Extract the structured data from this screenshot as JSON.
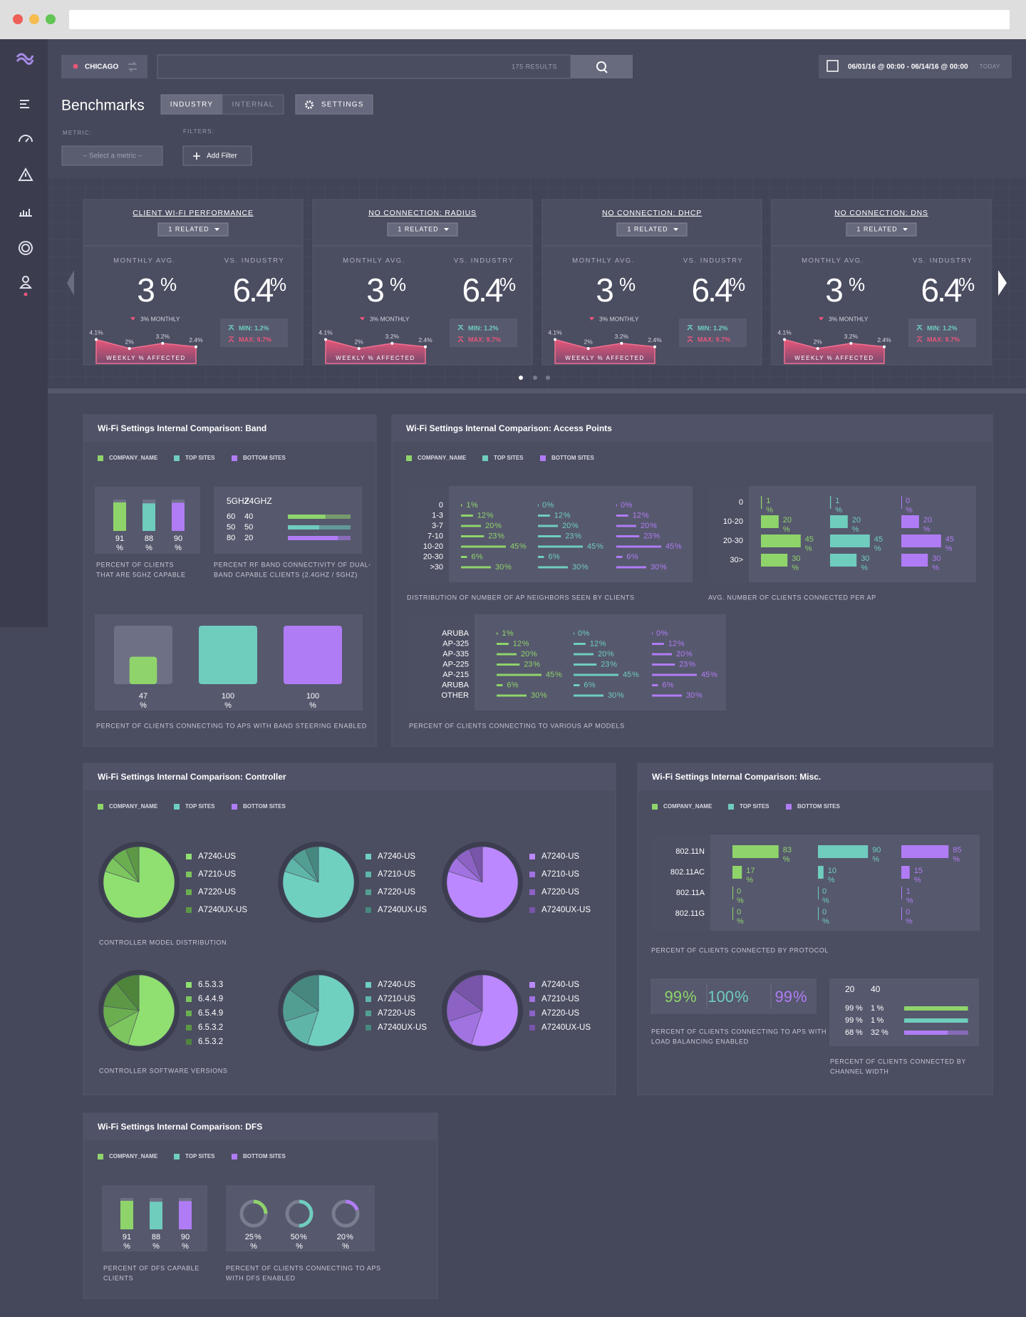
{
  "header": {
    "location": "CHICAGO",
    "results": "175 RESULTS",
    "date_range": "06/01/16 @ 00:00 - 06/14/16 @ 00:00",
    "today": "TODAY"
  },
  "page": {
    "title": "Benchmarks",
    "tabs": [
      "INDUSTRY",
      "INTERNAL"
    ],
    "settings": "SETTINGS",
    "metric_label": "METRIC:",
    "filters_label": "FILTERS:",
    "metric_placeholder": "– Select a metric –",
    "add_filter": "Add Filter"
  },
  "unit": "%",
  "cards": [
    {
      "title": "CLIENT WI-FI PERFORMANCE",
      "related": "1 RELATED",
      "monthly_label": "MONTHLY AVG.",
      "monthly_value": 3,
      "vs_label": "VS. INDUSTRY",
      "vs_value": 6.4,
      "change": "3% MONTHLY",
      "min": "MIN: 1.2%",
      "max": "MAX: 9.7%",
      "trend": {
        "type": "area",
        "values": [
          4.1,
          2,
          3.2,
          2.4
        ],
        "value_labels": [
          "4.1%",
          "2%",
          "3.2%",
          "2.4%"
        ],
        "label": "WEEKLY % AFFECTED"
      }
    },
    {
      "title": "NO CONNECTION: RADIUS",
      "related": "1 RELATED",
      "monthly_label": "MONTHLY AVG.",
      "monthly_value": 3,
      "vs_label": "VS. INDUSTRY",
      "vs_value": 6.4,
      "change": "3% MONTHLY",
      "min": "MIN: 1.2%",
      "max": "MAX: 9.7%",
      "trend": {
        "type": "area",
        "values": [
          4.1,
          2,
          3.2,
          2.4
        ],
        "value_labels": [
          "4.1%",
          "2%",
          "3.2%",
          "2.4%"
        ],
        "label": "WEEKLY % AFFECTED"
      }
    },
    {
      "title": "NO CONNECTION: DHCP",
      "related": "1 RELATED",
      "monthly_label": "MONTHLY AVG.",
      "monthly_value": 3,
      "vs_label": "VS. INDUSTRY",
      "vs_value": 6.4,
      "change": "3% MONTHLY",
      "min": "MIN: 1.2%",
      "max": "MAX: 9.7%",
      "trend": {
        "type": "area",
        "values": [
          4.1,
          2,
          3.2,
          2.4
        ],
        "value_labels": [
          "4.1%",
          "2%",
          "3.2%",
          "2.4%"
        ],
        "label": "WEEKLY % AFFECTED"
      }
    },
    {
      "title": "NO CONNECTION: DNS",
      "related": "1 RELATED",
      "monthly_label": "MONTHLY AVG.",
      "monthly_value": 3,
      "vs_label": "VS. INDUSTRY",
      "vs_value": 6.4,
      "change": "3% MONTHLY",
      "min": "MIN: 1.2%",
      "max": "MAX: 9.7%",
      "trend": {
        "type": "area",
        "values": [
          4.1,
          2,
          3.2,
          2.4
        ],
        "value_labels": [
          "4.1%",
          "2%",
          "3.2%",
          "2.4%"
        ],
        "label": "WEEKLY % AFFECTED"
      }
    }
  ],
  "legend": [
    {
      "name": "COMPANY_NAME",
      "color": "#8fd46b"
    },
    {
      "name": "TOP SITES",
      "color": "#6fcdbe"
    },
    {
      "name": "BOTTOM SITES",
      "color": "#b07cf5"
    }
  ],
  "band": {
    "title": "Wi-Fi Settings Internal Comparison: Band",
    "capable": {
      "type": "bar",
      "values": [
        91,
        88,
        90
      ],
      "ylim": [
        0,
        100
      ],
      "caption": [
        "PERCENT OF CLIENTS",
        "THAT ARE 5GHZ CAPABLE"
      ]
    },
    "connectivity": {
      "type": "stacked-bar",
      "columns": [
        "5GHZ",
        "24GHZ"
      ],
      "rows": [
        [
          60,
          40
        ],
        [
          50,
          50
        ],
        [
          80,
          20
        ]
      ],
      "xlim": [
        0,
        100
      ],
      "caption": [
        "PERCENT RF BAND CONNECTIVITY OF DUAL-",
        "BAND CAPABLE CLIENTS  (2.4GHZ / 5GHZ)"
      ]
    },
    "steering": {
      "type": "square",
      "values": [
        47,
        100,
        100
      ],
      "ylim": [
        0,
        100
      ],
      "caption": [
        "PERCENT OF CLIENTS CONNECTING TO APS WITH BAND STEERING ENABLED"
      ]
    }
  },
  "access_points": {
    "title": "Wi-Fi Settings Internal Comparison: Access Points",
    "neighbors": {
      "type": "hbar",
      "categories": [
        "0",
        "1-3",
        "3-7",
        "7-10",
        "10-20",
        "20-30",
        ">30"
      ],
      "series": [
        [
          1,
          12,
          20,
          23,
          45,
          6,
          30
        ],
        [
          0,
          12,
          20,
          23,
          45,
          6,
          30
        ],
        [
          0,
          12,
          20,
          23,
          45,
          6,
          30
        ]
      ],
      "xlim": [
        0,
        50
      ],
      "caption": [
        "DISTRIBUTION OF NUMBER OF AP NEIGHBORS SEEN BY CLIENTS"
      ]
    },
    "clients": {
      "type": "hbar",
      "categories": [
        "0",
        "10-20",
        "20-30",
        "30>"
      ],
      "series": [
        [
          1,
          20,
          45,
          30
        ],
        [
          1,
          20,
          45,
          30
        ],
        [
          0,
          20,
          45,
          30
        ]
      ],
      "xlim": [
        0,
        50
      ],
      "caption": [
        "AVG. NUMBER OF CLIENTS CONNECTED PER AP"
      ]
    },
    "models": {
      "type": "hbar",
      "categories": [
        "ARUBA",
        "AP-325",
        "AP-335",
        "AP-225",
        "AP-215",
        "ARUBA",
        "OTHER"
      ],
      "series": [
        [
          1,
          12,
          20,
          23,
          45,
          6,
          30
        ],
        [
          0,
          12,
          20,
          23,
          45,
          6,
          30
        ],
        [
          0,
          12,
          20,
          23,
          45,
          6,
          30
        ]
      ],
      "xlim": [
        0,
        50
      ],
      "caption": [
        "PERCENT OF CLIENTS CONNECTING TO VARIOUS AP MODELS"
      ]
    }
  },
  "controller": {
    "title": "Wi-Fi Settings Internal Comparison: Controller",
    "models": {
      "type": "pie",
      "caption": [
        "CONTROLLER MODEL DISTRIBUTION"
      ],
      "charts": [
        {
          "labels": [
            "A7240-US",
            "A7210-US",
            "A7220-US",
            "A7240UX-US"
          ],
          "values": [
            80,
            7,
            7,
            6
          ]
        },
        {
          "labels": [
            "A7240-US",
            "A7210-US",
            "A7220-US",
            "A7240UX-US"
          ],
          "values": [
            80,
            7,
            7,
            6
          ]
        },
        {
          "labels": [
            "A7240-US",
            "A7210-US",
            "A7220-US",
            "A7240UX-US"
          ],
          "values": [
            80,
            7,
            7,
            6
          ]
        }
      ]
    },
    "versions": {
      "type": "pie",
      "caption": [
        "CONTROLLER SOFTWARE VERSIONS"
      ],
      "charts": [
        {
          "labels": [
            "6.5.3.3",
            "6.4.4.9",
            "6.5.4.9",
            "6.5.3.2",
            "6.5.3.2"
          ],
          "values": [
            55,
            12,
            10,
            12,
            11
          ]
        },
        {
          "labels": [
            "A7240-US",
            "A7210-US",
            "A7220-US",
            "A7240UX-US"
          ],
          "values": [
            55,
            15,
            15,
            15
          ]
        },
        {
          "labels": [
            "A7240-US",
            "A7210-US",
            "A7220-US",
            "A7240UX-US"
          ],
          "values": [
            55,
            15,
            15,
            15
          ]
        }
      ]
    }
  },
  "misc": {
    "title": "Wi-Fi Settings Internal Comparison: Misc.",
    "protocol": {
      "type": "hbar",
      "categories": [
        "802.11N",
        "802.11AC",
        "802.11A",
        "802.11G"
      ],
      "series": [
        [
          83,
          17,
          0,
          0
        ],
        [
          90,
          10,
          0,
          0
        ],
        [
          85,
          15,
          1,
          0
        ]
      ],
      "xlim": [
        0,
        100
      ],
      "caption": [
        "PERCENT OF CLIENTS CONNECTED BY PROTOCOL"
      ]
    },
    "load_balancing": {
      "type": "number",
      "values": [
        99,
        100,
        99
      ],
      "caption": [
        "PERCENT OF CLIENTS CONNECTING TO APS WITH",
        "LOAD BALANCING ENABLED"
      ]
    },
    "channel_width": {
      "type": "stacked-bar",
      "columns": [
        "20",
        "40"
      ],
      "rows": [
        [
          99,
          1
        ],
        [
          99,
          1
        ],
        [
          68,
          32
        ]
      ],
      "xlim": [
        0,
        100
      ],
      "caption": [
        "PERCENT OF CLIENTS CONNECTED BY",
        "CHANNEL WIDTH"
      ]
    }
  },
  "dfs": {
    "title": "Wi-Fi Settings Internal Comparison: DFS",
    "capable": {
      "type": "bar",
      "values": [
        91,
        88,
        90
      ],
      "ylim": [
        0,
        100
      ],
      "caption": [
        "PERCENT OF DFS CAPABLE",
        "CLIENTS"
      ]
    },
    "enabled": {
      "type": "donut",
      "values": [
        25,
        50,
        20
      ],
      "ylim": [
        0,
        100
      ],
      "caption": [
        "PERCENT OF CLIENTS CONNECTING TO APS",
        "WITH DFS ENABLED"
      ]
    }
  }
}
